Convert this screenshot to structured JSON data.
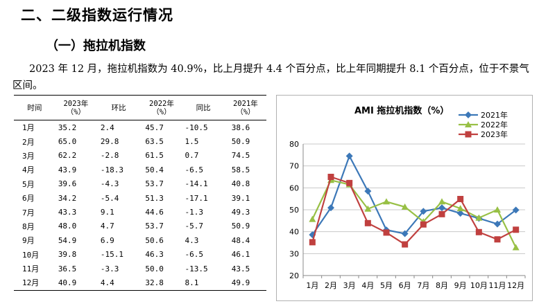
{
  "heading": {
    "section": "二、二级指数运行情况",
    "subsection": "（一）拖拉机指数"
  },
  "paragraph": "2023 年 12 月，拖拉机指数为 40.9%，比上月提升 4.4 个百分点，比上年同期提升 8.1 个百分点，位于不景气区间。",
  "table": {
    "headers": [
      "时间",
      "2023年\n（%）",
      "环比",
      "2022年\n（%）",
      "同比",
      "2021年\n（%）"
    ],
    "rows": [
      [
        "1月",
        "35.2",
        "2.4",
        "45.7",
        "-10.5",
        "38.6"
      ],
      [
        "2月",
        "65.0",
        "29.8",
        "63.5",
        "1.5",
        "50.9"
      ],
      [
        "3月",
        "62.2",
        "-2.8",
        "61.5",
        "0.7",
        "74.5"
      ],
      [
        "4月",
        "43.9",
        "-18.3",
        "50.4",
        "-6.5",
        "58.5"
      ],
      [
        "5月",
        "39.6",
        "-4.3",
        "53.7",
        "-14.1",
        "40.8"
      ],
      [
        "6月",
        "34.2",
        "-5.4",
        "51.3",
        "-17.1",
        "39.1"
      ],
      [
        "7月",
        "43.3",
        "9.1",
        "44.6",
        "-1.3",
        "49.3"
      ],
      [
        "8月",
        "48.0",
        "4.7",
        "53.7",
        "-5.7",
        "50.9"
      ],
      [
        "9月",
        "54.9",
        "6.9",
        "50.6",
        "4.3",
        "48.4"
      ],
      [
        "10月",
        "39.8",
        "-15.1",
        "46.3",
        "-6.5",
        "46.1"
      ],
      [
        "11月",
        "36.5",
        "-3.3",
        "50.0",
        "-13.5",
        "43.5"
      ],
      [
        "12月",
        "40.9",
        "4.4",
        "32.8",
        "8.1",
        "49.9"
      ]
    ]
  },
  "chart_data": {
    "type": "line",
    "title": "AMI 拖拉机指数（%）",
    "categories": [
      "1月",
      "2月",
      "3月",
      "4月",
      "5月",
      "6月",
      "7月",
      "8月",
      "9月",
      "10月",
      "11月",
      "12月"
    ],
    "ylim": [
      20,
      80
    ],
    "yticks": [
      20,
      30,
      40,
      50,
      60,
      70,
      80
    ],
    "grid": true,
    "legend_position": "top-right",
    "series": [
      {
        "name": "2021年",
        "color": "#3C78B8",
        "marker": "diamond",
        "values": [
          38.6,
          50.9,
          74.5,
          58.5,
          40.8,
          39.1,
          49.3,
          50.9,
          48.4,
          46.1,
          43.5,
          49.9
        ]
      },
      {
        "name": "2022年",
        "color": "#98C045",
        "marker": "triangle",
        "values": [
          45.7,
          63.5,
          61.5,
          50.4,
          53.7,
          51.3,
          44.6,
          53.7,
          50.6,
          46.3,
          50.0,
          32.8
        ]
      },
      {
        "name": "2023年",
        "color": "#C0403F",
        "marker": "square",
        "values": [
          35.2,
          65.0,
          62.2,
          43.9,
          39.6,
          34.2,
          43.3,
          48.0,
          54.9,
          39.8,
          36.5,
          40.9
        ]
      }
    ]
  }
}
